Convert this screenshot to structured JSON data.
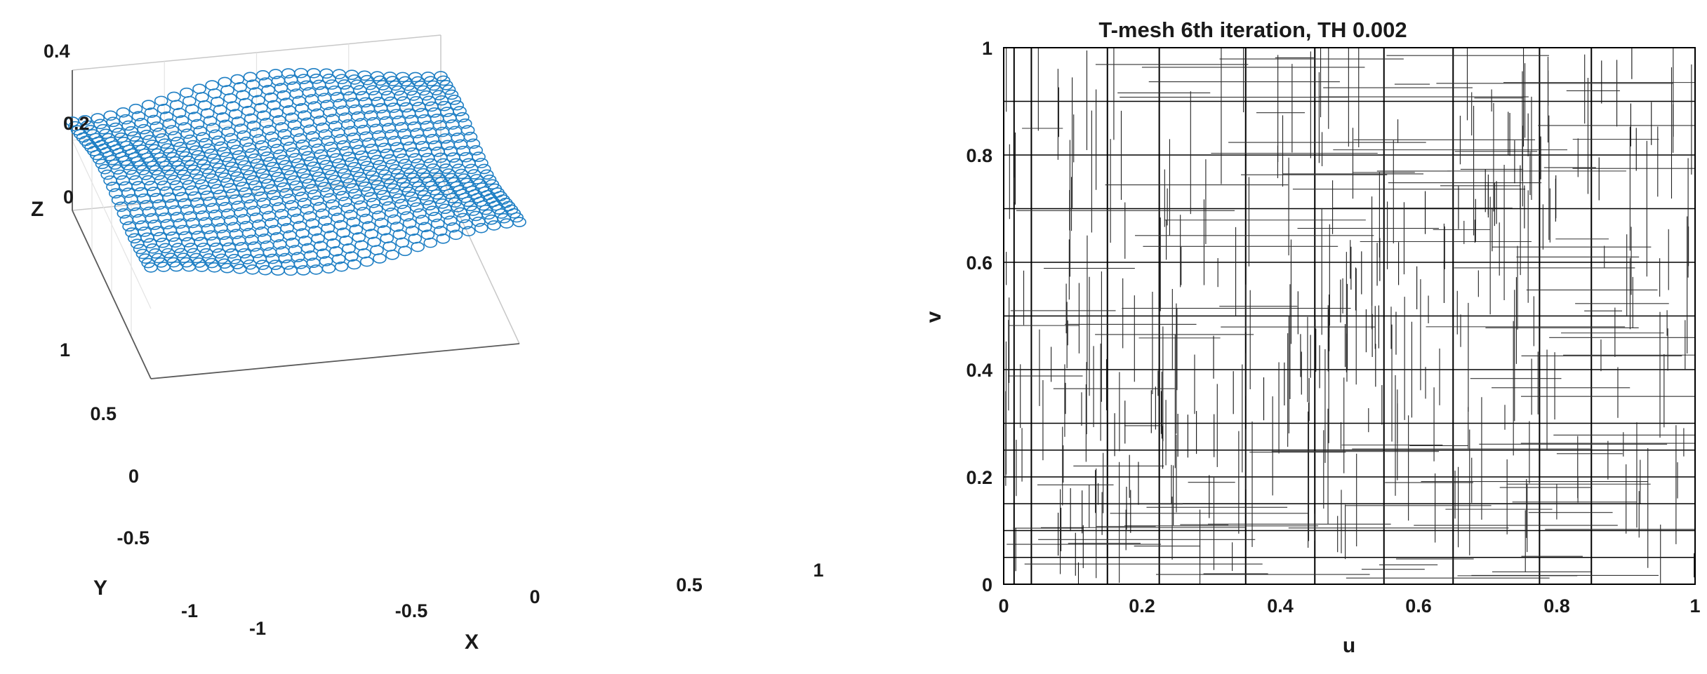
{
  "chart_data": [
    {
      "type": "scatter",
      "subtype": "3d-scatter",
      "title": "",
      "xlabel": "X",
      "ylabel": "Y",
      "zlabel": "Z",
      "xlim": [
        -1,
        1
      ],
      "ylim": [
        -1,
        1
      ],
      "zlim": [
        0,
        0.4
      ],
      "x_ticks": [
        "-1",
        "-0.5",
        "0",
        "0.5",
        "1"
      ],
      "y_ticks": [
        "-1",
        "-0.5",
        "0",
        "0.5",
        "1"
      ],
      "z_ticks": [
        "0",
        "0.2",
        "0.4"
      ],
      "marker": "circle",
      "marker_color": "#1f7fc4",
      "grid": true,
      "series": [
        {
          "kind": "rows",
          "rows": 30,
          "points_per_row": 30,
          "x_range": [
            -1,
            1
          ],
          "y_range": [
            -1,
            1
          ],
          "z_range": [
            0.27,
            0.33
          ]
        }
      ]
    },
    {
      "type": "mesh",
      "title": "T-mesh 6th iteration, TH 0.002",
      "xlabel": "u",
      "ylabel": "v",
      "xlim": [
        0,
        1
      ],
      "ylim": [
        0,
        1
      ],
      "x_ticks": [
        "0",
        "0.2",
        "0.4",
        "0.6",
        "0.8",
        "1"
      ],
      "y_ticks": [
        "0",
        "0.2",
        "0.4",
        "0.6",
        "0.8",
        "1"
      ],
      "line_color": "#000000",
      "full_u_lines": [
        0.015,
        0.04,
        0.15,
        0.225,
        0.35,
        0.45,
        0.55,
        0.65,
        0.775,
        0.85
      ],
      "full_v_lines": [
        0.05,
        0.1,
        0.15,
        0.2,
        0.25,
        0.3,
        0.4,
        0.5,
        0.6,
        0.7,
        0.8,
        0.9
      ]
    }
  ]
}
